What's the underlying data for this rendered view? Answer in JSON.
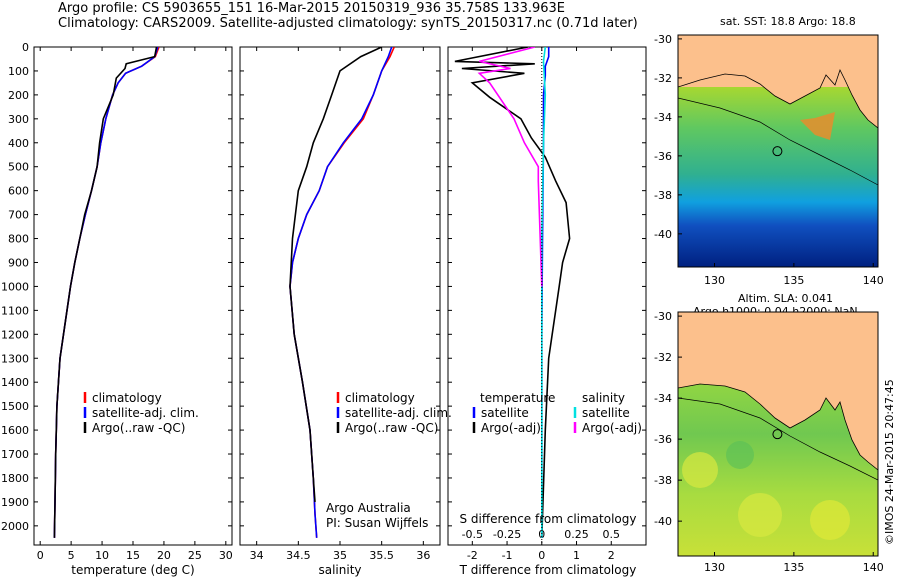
{
  "header": {
    "line1": "Argo profile: CS 5903655_151 16-Mar-2015 20150319_936 35.758S 133.963E",
    "line2": "Climatology: CARS2009. Satellite-adjusted climatology: synTS_20150317.nc (0.71d later)"
  },
  "stamp": "©IMOS 24-Mar-2015 20:47:45",
  "colors": {
    "climatology": "#ff0000",
    "satellite_clim": "#0000ff",
    "argo": "#000000",
    "sat_salinity_diff": "#00e0e0",
    "argo_salinity_diff": "#ff00ff",
    "land": "#fcc08c"
  },
  "depth_ticks": [
    "0",
    "100",
    "200",
    "300",
    "400",
    "500",
    "600",
    "700",
    "800",
    "900",
    "1000",
    "1100",
    "1200",
    "1300",
    "1400",
    "1500",
    "1600",
    "1700",
    "1800",
    "1900",
    "2000"
  ],
  "chart_data": [
    {
      "type": "line",
      "name": "temperature-profile",
      "xlabel": "temperature (deg C)",
      "xlim": [
        -1,
        31
      ],
      "ylim": [
        2080,
        0
      ],
      "xticks": [
        "0",
        "5",
        "10",
        "15",
        "20",
        "25",
        "30"
      ],
      "legend": [
        "climatology",
        "satellite-adj. clim.",
        "Argo(..raw -QC)"
      ],
      "series": [
        {
          "name": "climatology",
          "color": "#ff0000",
          "x": [
            19.2,
            18.6,
            16.4,
            13.8,
            12.6,
            11.7,
            10.6,
            9.8,
            9.2,
            8.3,
            7.3,
            6.4,
            5.6,
            4.9,
            3.2,
            2.7,
            2.5,
            2.4,
            2.3
          ],
          "y": [
            0,
            40,
            80,
            110,
            150,
            200,
            300,
            400,
            500,
            600,
            700,
            800,
            900,
            1000,
            1300,
            1500,
            1700,
            1900,
            2050
          ]
        },
        {
          "name": "satellite-adj. clim.",
          "color": "#0000ff",
          "x": [
            19.0,
            18.5,
            16.4,
            13.8,
            12.6,
            11.7,
            10.6,
            9.8,
            9.2,
            8.3,
            7.3,
            6.4,
            5.6,
            4.9,
            3.2,
            2.7,
            2.5,
            2.4,
            2.3
          ],
          "y": [
            0,
            40,
            80,
            110,
            150,
            200,
            300,
            400,
            500,
            600,
            700,
            800,
            900,
            1000,
            1300,
            1500,
            1700,
            1900,
            2050
          ]
        },
        {
          "name": "Argo(..raw -QC)",
          "color": "#000000",
          "x": [
            18.8,
            18.5,
            13.9,
            13.7,
            12.3,
            11.8,
            10.2,
            9.6,
            9.2,
            8.3,
            7.2,
            6.4,
            5.6,
            4.9,
            3.2,
            2.7,
            2.5,
            2.4,
            2.3
          ],
          "y": [
            0,
            40,
            70,
            90,
            130,
            200,
            300,
            400,
            500,
            600,
            700,
            800,
            900,
            1000,
            1300,
            1500,
            1700,
            1900,
            2050
          ]
        }
      ]
    },
    {
      "type": "line",
      "name": "salinity-profile",
      "xlabel": "salinity",
      "xlim": [
        33.8,
        36.2
      ],
      "ylim": [
        2080,
        0
      ],
      "xticks": [
        "34",
        "34.5",
        "35",
        "35.5",
        "36"
      ],
      "legend": [
        "climatology",
        "satellite-adj. clim.",
        "Argo(..raw -QC)"
      ],
      "annotation": [
        "Argo Australia",
        "PI: Susan Wijffels"
      ],
      "series": [
        {
          "name": "climatology",
          "color": "#ff0000",
          "x": [
            35.65,
            35.6,
            35.5,
            35.4,
            35.28,
            35.05,
            34.85,
            34.75,
            34.6,
            34.5,
            34.43,
            34.4,
            34.45,
            34.55,
            34.64,
            34.68,
            34.7,
            34.72
          ],
          "y": [
            0,
            40,
            100,
            200,
            300,
            400,
            500,
            600,
            700,
            800,
            900,
            1000,
            1200,
            1400,
            1600,
            1800,
            1950,
            2050
          ]
        },
        {
          "name": "satellite-adj. clim.",
          "color": "#0000ff",
          "x": [
            35.62,
            35.58,
            35.5,
            35.4,
            35.26,
            35.04,
            34.85,
            34.75,
            34.6,
            34.5,
            34.43,
            34.4,
            34.45,
            34.55,
            34.64,
            34.68,
            34.7,
            34.72
          ],
          "y": [
            0,
            40,
            100,
            200,
            300,
            400,
            500,
            600,
            700,
            800,
            900,
            1000,
            1200,
            1400,
            1600,
            1800,
            1950,
            2050
          ]
        },
        {
          "name": "Argo(..raw -QC)",
          "color": "#000000",
          "x": [
            35.5,
            35.25,
            35.0,
            34.9,
            34.8,
            34.68,
            34.6,
            34.5,
            34.43,
            34.4,
            34.45,
            34.55,
            34.64,
            34.68,
            34.7
          ],
          "y": [
            0,
            40,
            100,
            200,
            300,
            400,
            500,
            600,
            800,
            1000,
            1200,
            1400,
            1600,
            1800,
            1900
          ]
        }
      ]
    },
    {
      "type": "line",
      "name": "difference-profile",
      "xlabel": "T difference from climatology",
      "xlabel_top": "S difference from climatology",
      "xlim": [
        -2.7,
        3.0
      ],
      "ylim": [
        2080,
        0
      ],
      "xticks": [
        "-2",
        "-1",
        "0",
        "1",
        "2"
      ],
      "xticks_s": [
        "-0.5",
        "-0.25",
        "0",
        "0.25",
        "0.5"
      ],
      "legend_temperature": {
        "title": "temperature",
        "items": [
          "satellite",
          "Argo(-adj)"
        ]
      },
      "legend_salinity": {
        "title": "salinity",
        "items": [
          "satellite",
          "Argo(-adj)"
        ]
      },
      "series": [
        {
          "name": "temperature satellite",
          "color": "#0000ff",
          "x": [
            0.2,
            0.2,
            0.1,
            0.1,
            0.05,
            0.05,
            0.02,
            0,
            0
          ],
          "y": [
            0,
            40,
            80,
            120,
            200,
            400,
            800,
            1200,
            2050
          ]
        },
        {
          "name": "temperature Argo(-adj)",
          "color": "#000000",
          "x": [
            -0.4,
            -2.5,
            -0.2,
            -2.3,
            -0.5,
            -2.0,
            -1.5,
            -0.6,
            -0.3,
            0.1,
            0.4,
            0.7,
            0.8,
            0.6,
            0.5,
            0.4,
            0.3,
            0.2,
            0.1,
            0.0
          ],
          "y": [
            0,
            60,
            70,
            90,
            110,
            150,
            210,
            300,
            380,
            460,
            560,
            650,
            800,
            900,
            1000,
            1100,
            1200,
            1300,
            1600,
            2050
          ]
        },
        {
          "name": "salinity satellite",
          "color": "#00e0e0",
          "x": [
            0.1,
            0.05,
            0.1,
            0.05,
            0.0,
            0.0,
            0.0
          ],
          "y": [
            0,
            60,
            200,
            400,
            800,
            1200,
            2050
          ]
        },
        {
          "name": "salinity Argo(-adj)",
          "color": "#ff00ff",
          "x": [
            -0.2,
            -1.8,
            -0.9,
            -1.8,
            -1.5,
            -0.8,
            -0.5,
            -0.1,
            -0.1,
            0.0
          ],
          "y": [
            0,
            60,
            90,
            110,
            150,
            300,
            400,
            500,
            560,
            1000
          ]
        }
      ]
    },
    {
      "type": "heatmap",
      "name": "sst-map",
      "title": "sat. SST: 18.8 Argo: 18.8",
      "xlim": [
        127.7,
        140.3
      ],
      "ylim": [
        -41.7,
        -29.8
      ],
      "xticks": [
        "130",
        "135",
        "140"
      ],
      "yticks": [
        "-30",
        "-32",
        "-34",
        "-36",
        "-38",
        "-40"
      ],
      "marker": {
        "lon": 133.963,
        "lat": -35.758
      }
    },
    {
      "type": "heatmap",
      "name": "sla-map",
      "title": "Altim. SLA: 0.041",
      "subtitle": "Argo h1000: 0.04 h2000: NaN",
      "xlim": [
        127.7,
        140.3
      ],
      "ylim": [
        -41.7,
        -29.8
      ],
      "xticks": [
        "130",
        "135",
        "140"
      ],
      "yticks": [
        "-30",
        "-32",
        "-34",
        "-36",
        "-38",
        "-40"
      ],
      "marker": {
        "lon": 133.963,
        "lat": -35.758
      }
    }
  ]
}
